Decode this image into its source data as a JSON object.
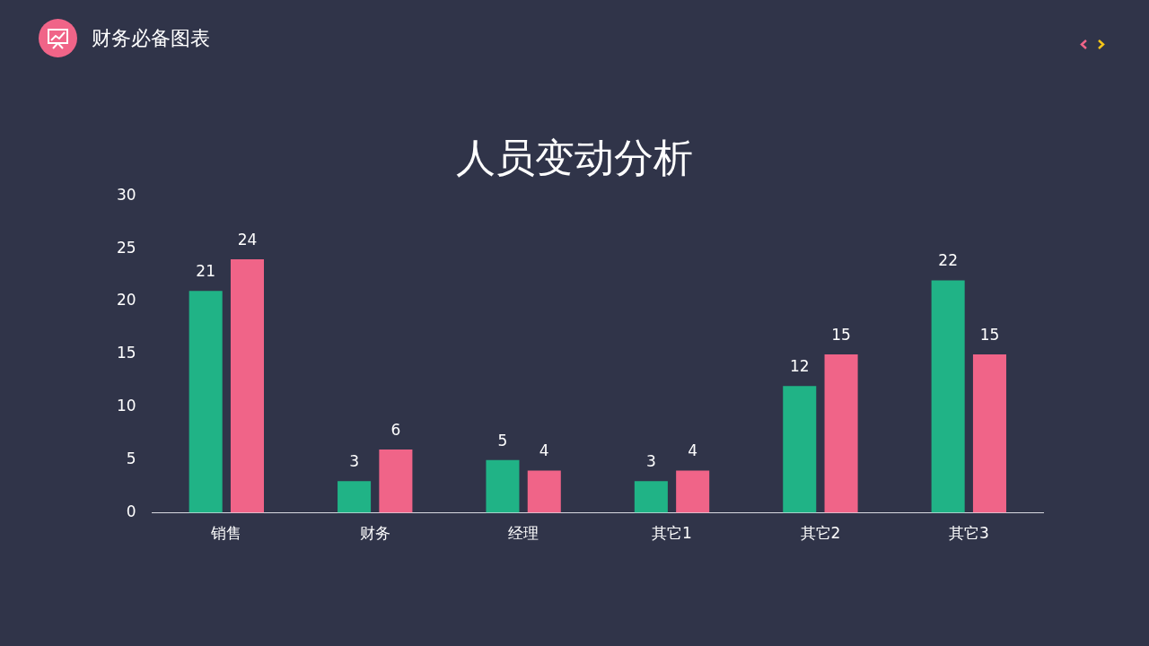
{
  "chart_data": {
    "type": "bar",
    "title": "人员变动分析",
    "annotations": [
      "财务必备图表"
    ],
    "categories": [
      "销售",
      "财务",
      "经理",
      "其它1",
      "其它2",
      "其它3"
    ],
    "series": [
      {
        "color": "#20b386",
        "values": [
          21,
          3,
          5,
          3,
          12,
          22
        ]
      },
      {
        "color": "#f06488",
        "values": [
          24,
          6,
          4,
          4,
          15,
          15
        ]
      }
    ],
    "ylim": [
      0,
      30
    ],
    "yticks": [
      0,
      5,
      10,
      15,
      20,
      25,
      30
    ],
    "grid": false,
    "legend": false,
    "data_labels": true
  }
}
